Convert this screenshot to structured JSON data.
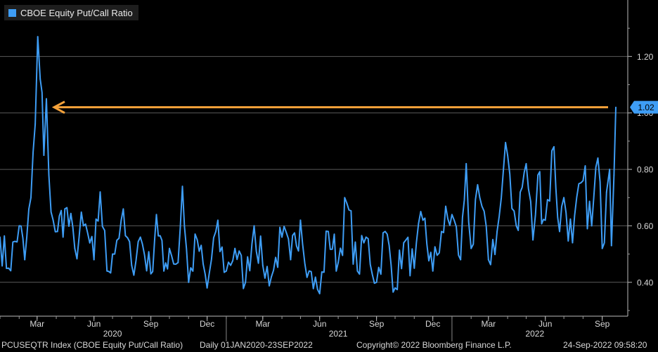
{
  "legend": {
    "label": "CBOE Equity Put/Call Ratio",
    "color": "#3e9df5"
  },
  "footer": {
    "ticker": "PCUSEQTR Index (CBOE Equity Put/Call Ratio)",
    "range": "Daily 01JAN2020-23SEP2022",
    "copyright": "Copyright© 2022 Bloomberg Finance L.P.",
    "timestamp": "24-Sep-2022 09:58:20"
  },
  "chart_data": {
    "type": "line",
    "ylim": [
      0.28,
      1.4
    ],
    "y_ticks": [
      "0.40",
      "0.60",
      "0.80",
      "1.00",
      "1.20"
    ],
    "x_tick_labels": [
      "Mar",
      "Jun",
      "Sep",
      "Dec",
      "Mar",
      "Jun",
      "Sep",
      "Dec",
      "Mar",
      "Jun",
      "Sep"
    ],
    "year_labels": [
      "2020",
      "2021",
      "2022"
    ],
    "grid": true,
    "legend_position": "top-left",
    "last_value_label": "1.02",
    "annotation": {
      "type": "arrow",
      "value": 1.02,
      "color": "#f5a23a"
    },
    "series": [
      {
        "name": "CBOE Equity Put/Call Ratio",
        "color": "#3e9df5",
        "x": [
          "2020-01-01",
          "2020-01-15",
          "2020-02-01",
          "2020-02-10",
          "2020-02-20",
          "2020-02-27",
          "2020-03-02",
          "2020-03-06",
          "2020-03-12",
          "2020-03-16",
          "2020-03-20",
          "2020-03-27",
          "2020-04-03",
          "2020-04-15",
          "2020-05-01",
          "2020-05-15",
          "2020-06-01",
          "2020-06-11",
          "2020-06-22",
          "2020-07-01",
          "2020-07-15",
          "2020-08-01",
          "2020-08-15",
          "2020-09-01",
          "2020-09-10",
          "2020-09-22",
          "2020-10-01",
          "2020-10-15",
          "2020-10-22",
          "2020-11-01",
          "2020-11-15",
          "2020-12-01",
          "2020-12-15",
          "2021-01-01",
          "2021-01-15",
          "2021-02-01",
          "2021-02-15",
          "2021-03-01",
          "2021-03-15",
          "2021-04-01",
          "2021-04-15",
          "2021-05-01",
          "2021-05-15",
          "2021-06-01",
          "2021-06-15",
          "2021-07-01",
          "2021-07-15",
          "2021-08-01",
          "2021-08-15",
          "2021-09-01",
          "2021-09-15",
          "2021-10-01",
          "2021-10-15",
          "2021-11-01",
          "2021-11-15",
          "2021-12-01",
          "2021-12-15",
          "2022-01-01",
          "2022-01-15",
          "2022-01-24",
          "2022-02-01",
          "2022-02-15",
          "2022-03-01",
          "2022-03-15",
          "2022-04-01",
          "2022-04-15",
          "2022-05-01",
          "2022-05-12",
          "2022-05-20",
          "2022-06-01",
          "2022-06-15",
          "2022-06-24",
          "2022-07-01",
          "2022-07-15",
          "2022-08-01",
          "2022-08-15",
          "2022-08-25",
          "2022-09-01",
          "2022-09-08",
          "2022-09-13",
          "2022-09-16",
          "2022-09-20",
          "2022-09-23"
        ],
        "values": [
          0.56,
          0.45,
          0.6,
          0.48,
          0.7,
          0.96,
          1.27,
          1.12,
          0.85,
          1.05,
          0.78,
          0.62,
          0.58,
          0.66,
          0.52,
          0.6,
          0.48,
          0.72,
          0.44,
          0.5,
          0.62,
          0.46,
          0.56,
          0.43,
          0.64,
          0.44,
          0.52,
          0.47,
          0.74,
          0.4,
          0.55,
          0.38,
          0.58,
          0.44,
          0.52,
          0.4,
          0.6,
          0.46,
          0.42,
          0.56,
          0.48,
          0.62,
          0.44,
          0.36,
          0.58,
          0.47,
          0.68,
          0.44,
          0.56,
          0.4,
          0.58,
          0.38,
          0.54,
          0.45,
          0.62,
          0.44,
          0.58,
          0.64,
          0.48,
          0.82,
          0.52,
          0.7,
          0.48,
          0.58,
          0.85,
          0.6,
          0.82,
          0.55,
          0.78,
          0.62,
          0.88,
          0.58,
          0.7,
          0.54,
          0.76,
          0.6,
          0.84,
          0.52,
          0.72,
          0.8,
          0.53,
          0.78,
          1.02
        ]
      }
    ]
  }
}
